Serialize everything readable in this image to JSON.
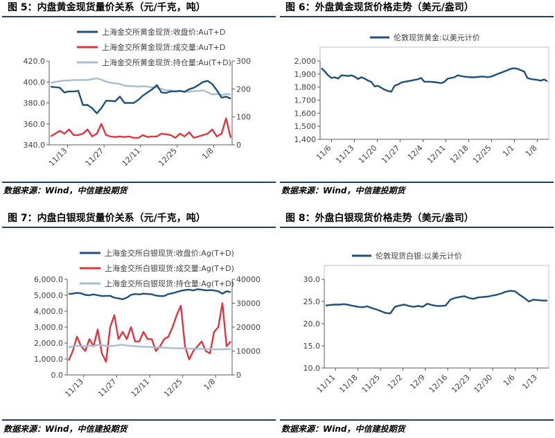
{
  "source_note": "数据来源：Wind，中信建投期货",
  "panels": [
    {
      "title": "图 5：内盘黄金现货量价关系（元/千克，吨）",
      "chart_data": {
        "type": "line",
        "legend_position": "top-right",
        "x_labels": [
          "11/13",
          "11/27",
          "12/11",
          "12/25",
          "1/8"
        ],
        "left_axis": {
          "ticks": [
            "340.0",
            "360.0",
            "380.0",
            "400.0",
            "420.0"
          ],
          "range": [
            340,
            420
          ]
        },
        "right_axis": {
          "ticks": [
            "0",
            "100",
            "200",
            "300"
          ],
          "range": [
            0,
            300
          ]
        },
        "series": [
          {
            "name": "上海金交所黄金现货:收盘价:AuT+D",
            "axis": "left",
            "color": "#1f4e79",
            "values": [
              395.5,
              395,
              394.5,
              390,
              391,
              391,
              391.5,
              378,
              378,
              375,
              370,
              375,
              382,
              382,
              381.5,
              386,
              380,
              380,
              380,
              383,
              387,
              390,
              393,
              397,
              390,
              389.5,
              391,
              391,
              391.5,
              390.5,
              393,
              394.5,
              397,
              400,
              401,
              398,
              392,
              385,
              386,
              384
            ]
          },
          {
            "name": "上海金交所黄金现货:成交量:AuT+D",
            "axis": "right",
            "color": "#e0343d",
            "values": [
              30,
              40,
              50,
              40,
              55,
              35,
              35,
              40,
              55,
              30,
              40,
              75,
              35,
              30,
              28,
              30,
              28,
              30,
              25,
              25,
              35,
              28,
              30,
              30,
              40,
              38,
              35,
              25,
              40,
              30,
              45,
              25,
              30,
              35,
              40,
              55,
              30,
              40,
              95,
              25
            ]
          },
          {
            "name": "上海金交所黄金现货:持仓量:Au(T+D)",
            "axis": "right",
            "color": "#a6bdd0",
            "values": [
              222,
              225,
              228,
              230,
              230,
              232,
              232,
              232,
              232,
              235,
              238,
              233,
              226,
              222,
              220,
              218,
              212,
              210,
              210,
              208,
              210,
              208,
              205,
              205,
              200,
              195,
              195,
              192,
              192,
              190,
              190,
              192,
              193,
              195,
              188,
              180,
              182,
              178,
              182,
              180
            ]
          }
        ]
      }
    },
    {
      "title": "图 6：外盘黄金现货价格走势（美元/盎司）",
      "chart_data": {
        "type": "line",
        "legend_position": "top-left",
        "x_labels": [
          "11/6",
          "11/13",
          "11/20",
          "11/27",
          "12/4",
          "12/11",
          "12/18",
          "12/25",
          "1/1",
          "1/8"
        ],
        "left_axis": {
          "ticks": [
            "1,400",
            "1,500",
            "1,600",
            "1,700",
            "1,800",
            "1,900",
            "2,000"
          ],
          "range": [
            1400,
            2000
          ]
        },
        "series": [
          {
            "name": "伦敦现货黄金:以美元计价",
            "axis": "left",
            "color": "#1f4e79",
            "values": [
              1945,
              1920,
              1890,
              1870,
              1875,
              1865,
              1890,
              1888,
              1885,
              1890,
              1880,
              1862,
              1875,
              1865,
              1850,
              1840,
              1805,
              1810,
              1795,
              1780,
              1770,
              1765,
              1810,
              1820,
              1835,
              1840,
              1845,
              1850,
              1855,
              1860,
              1870,
              1840,
              1842,
              1840,
              1838,
              1835,
              1830,
              1840,
              1865,
              1870,
              1875,
              1890,
              1885,
              1880,
              1878,
              1875,
              1875,
              1878,
              1880,
              1880,
              1875,
              1880,
              1890,
              1900,
              1910,
              1920,
              1930,
              1940,
              1945,
              1940,
              1930,
              1920,
              1870,
              1862,
              1858,
              1855,
              1850,
              1858,
              1845
            ]
          }
        ]
      }
    },
    {
      "title": "图 7：内盘白银现货量价关系（元/千克，吨）",
      "chart_data": {
        "type": "line",
        "legend_position": "top-right",
        "x_labels": [
          "11/13",
          "11/27",
          "12/11",
          "12/25",
          "1/8"
        ],
        "left_axis": {
          "ticks": [
            "0.0",
            "1,000.0",
            "2,000.0",
            "3,000.0",
            "4,000.0",
            "5,000.0",
            "6,000.0"
          ],
          "range": [
            0,
            6000
          ]
        },
        "right_axis": {
          "ticks": [
            "0",
            "10000",
            "20000",
            "30000",
            "40000"
          ],
          "range": [
            0,
            40000
          ]
        },
        "series": [
          {
            "name": "上海金交所白银现货:收盘价:Ag(T+D)",
            "axis": "left",
            "color": "#1f4e79",
            "values": [
              5080,
              5100,
              5150,
              5120,
              5020,
              5000,
              5050,
              5000,
              4950,
              4960,
              4960,
              4850,
              4800,
              4750,
              4850,
              5020,
              5080,
              5050,
              5100,
              5080,
              5060,
              4980,
              4950,
              4950,
              5080,
              5120,
              5200,
              5280,
              5320,
              5350,
              5300,
              5380,
              5350,
              5300,
              5320,
              5300,
              5250,
              5100,
              5250,
              5200
            ]
          },
          {
            "name": "上海金交所白银现货:成交量:Ag(T+D)",
            "axis": "right",
            "color": "#e0343d",
            "values": [
              6000,
              10000,
              16000,
              12000,
              10000,
              15000,
              12000,
              19000,
              9000,
              5500,
              20000,
              25000,
              15000,
              18000,
              15000,
              20000,
              14000,
              14000,
              18000,
              15000,
              15000,
              10000,
              12000,
              15000,
              16000,
              20000,
              25000,
              29000,
              12000,
              6500,
              10000,
              12000,
              14000,
              10000,
              9000,
              18000,
              20000,
              30000,
              12000,
              14000
            ]
          },
          {
            "name": "上海金交所白银现货:持仓量:Ag(T+D)",
            "axis": "right",
            "color": "#a6bdd0",
            "values": [
              11500,
              12000,
              12200,
              12100,
              12000,
              12300,
              12200,
              12500,
              12400,
              12200,
              12000,
              12200,
              12500,
              12600,
              12300,
              12200,
              12000,
              11900,
              11800,
              11800,
              11600,
              11500,
              11500,
              11400,
              11300,
              11200,
              11200,
              11100,
              11100,
              11000,
              11000,
              10900,
              10900,
              10800,
              10800,
              10700,
              10700,
              10700,
              10800,
              10800
            ]
          }
        ]
      }
    },
    {
      "title": "图 8：外盘白银现货价格走势（美元/盎司）",
      "chart_data": {
        "type": "line",
        "legend_position": "top-left",
        "x_labels": [
          "11/11",
          "11/18",
          "11/25",
          "12/2",
          "12/9",
          "12/16",
          "12/23",
          "12/30",
          "1/6",
          "1/13"
        ],
        "left_axis": {
          "ticks": [
            "10.0",
            "15.0",
            "20.0",
            "25.0",
            "30.0"
          ],
          "range": [
            10,
            30
          ]
        },
        "series": [
          {
            "name": "伦敦现货白银:以美元计价",
            "axis": "left",
            "color": "#1f4e79",
            "values": [
              24.1,
              24.2,
              24.3,
              24.3,
              24.4,
              24.2,
              24.0,
              23.8,
              23.7,
              23.9,
              23.5,
              23.2,
              22.8,
              22.4,
              22.3,
              23.8,
              24.1,
              24.3,
              24.0,
              23.8,
              24.0,
              23.8,
              24.5,
              24.2,
              24.0,
              24.0,
              24.1,
              25.4,
              25.8,
              26.0,
              26.2,
              25.8,
              25.6,
              25.9,
              26.0,
              26.1,
              26.3,
              26.5,
              26.8,
              27.2,
              27.4,
              27.3,
              26.5,
              25.8,
              25.0,
              25.4,
              25.3,
              25.2,
              25.2
            ]
          }
        ]
      }
    }
  ]
}
